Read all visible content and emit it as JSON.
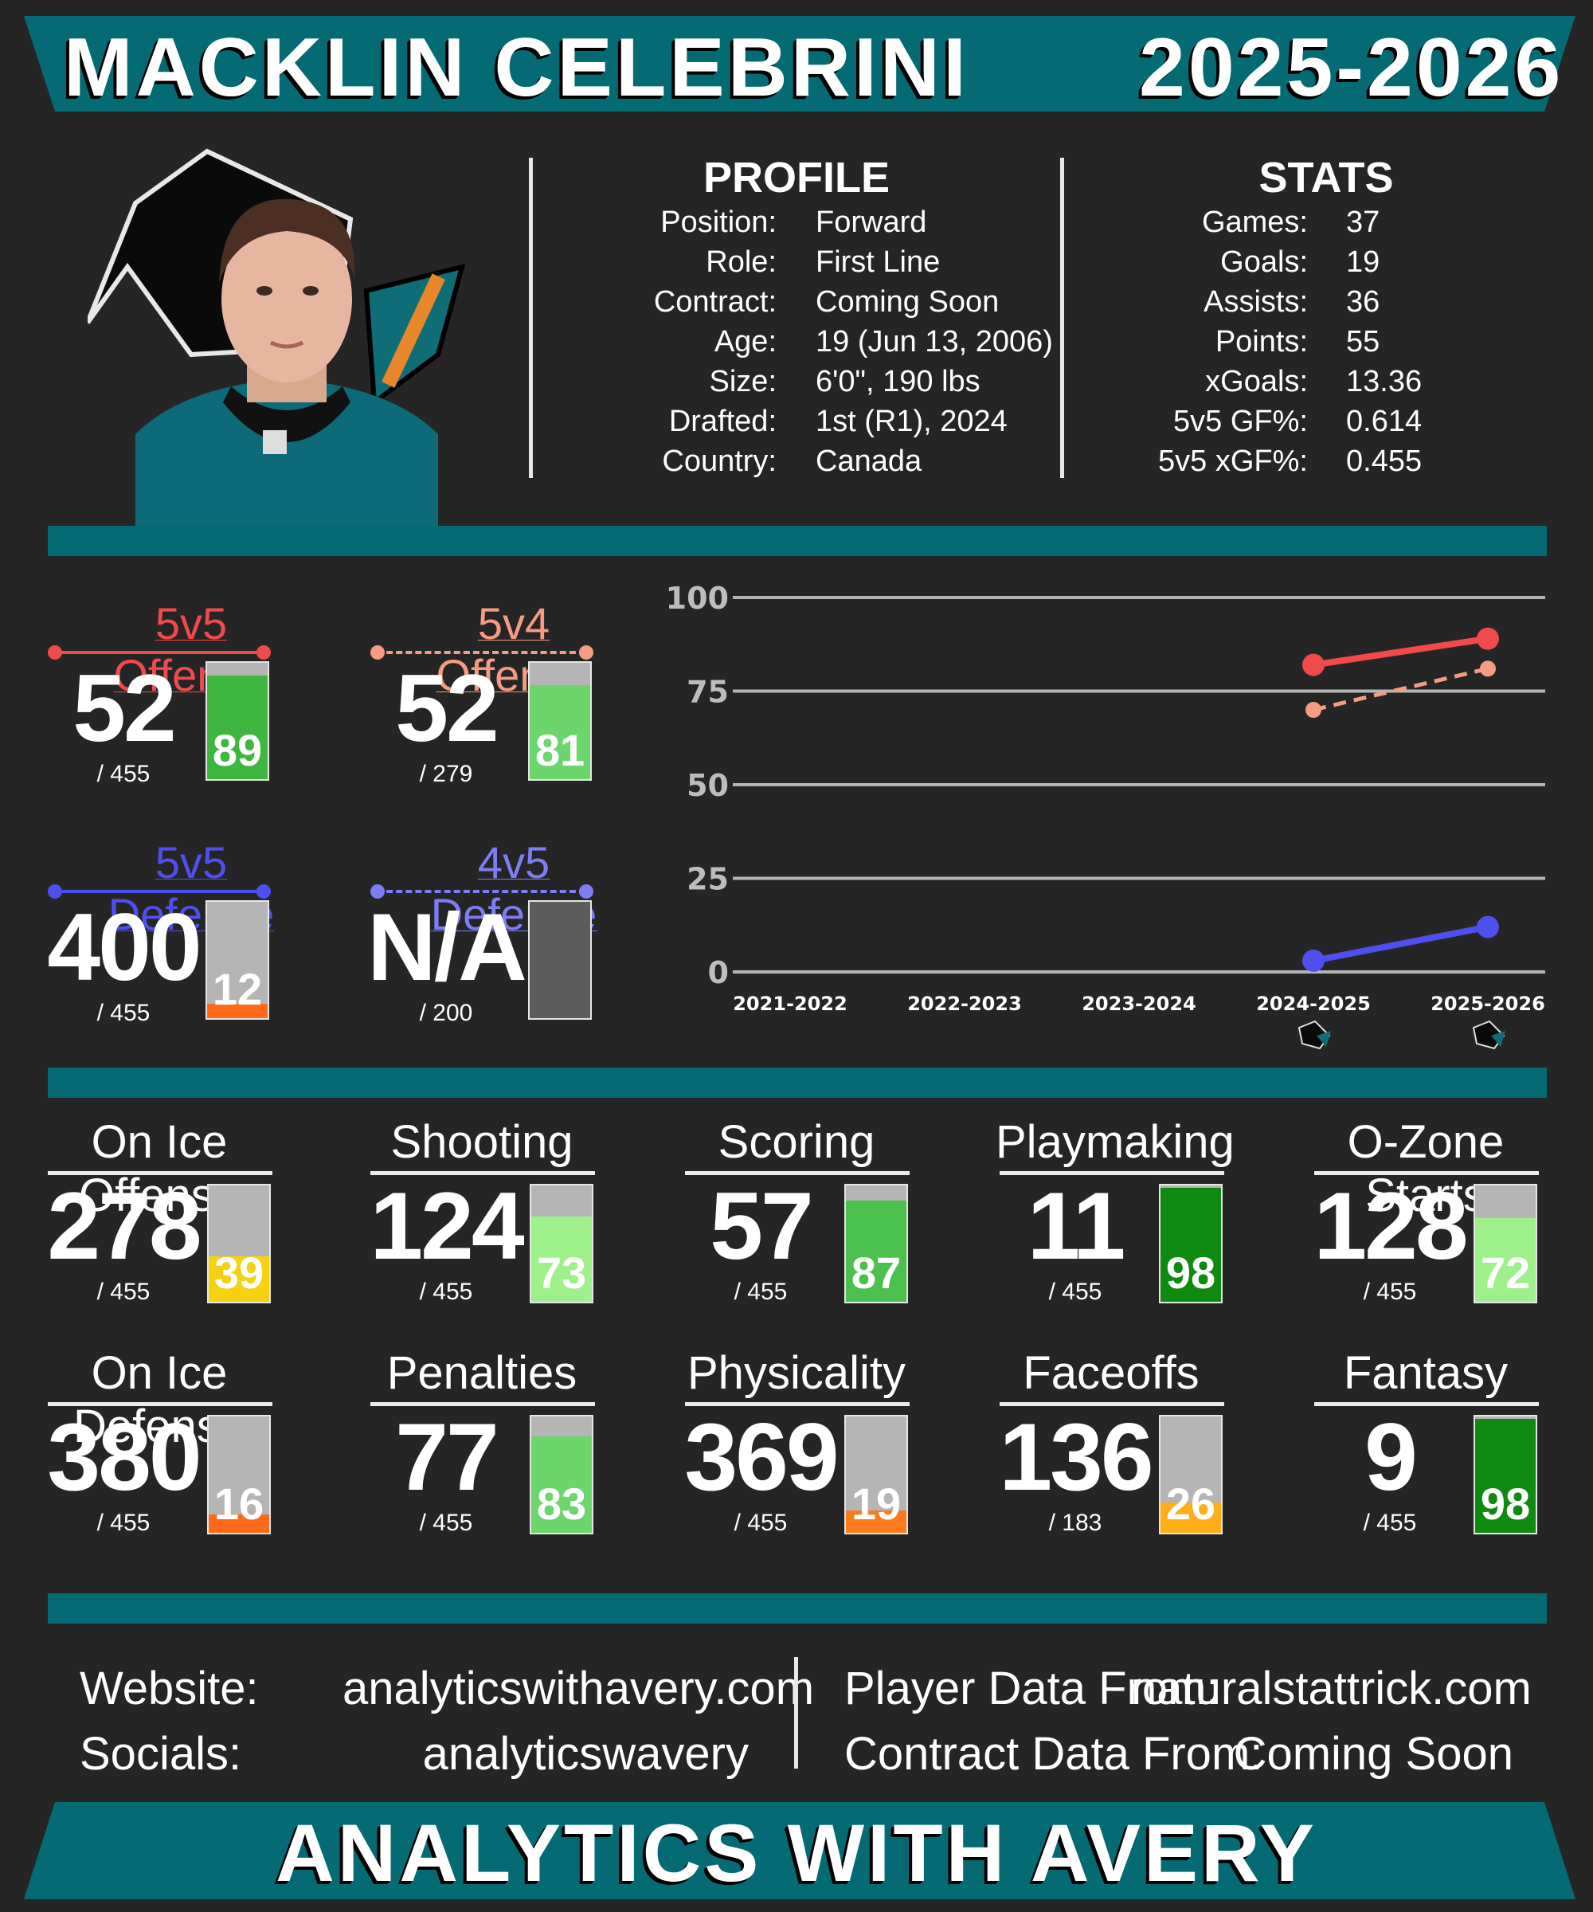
{
  "header": {
    "player_name": "MACKLIN CELEBRINI",
    "season": "2025-2026"
  },
  "profile": {
    "heading": "PROFILE",
    "rows": [
      {
        "label": "Position:",
        "value": "Forward"
      },
      {
        "label": "Role:",
        "value": "First Line"
      },
      {
        "label": "Contract:",
        "value": "Coming Soon"
      },
      {
        "label": "Age:",
        "value": "19 (Jun 13, 2006)"
      },
      {
        "label": "Size:",
        "value": "6'0\", 190 lbs"
      },
      {
        "label": "Drafted:",
        "value": "1st (R1), 2024"
      },
      {
        "label": "Country:",
        "value": "Canada"
      }
    ]
  },
  "stats": {
    "heading": "STATS",
    "rows": [
      {
        "label": "Games:",
        "value": "37"
      },
      {
        "label": "Goals:",
        "value": "19"
      },
      {
        "label": "Assists:",
        "value": "36"
      },
      {
        "label": "Points:",
        "value": "55"
      },
      {
        "label": "xGoals:",
        "value": "13.36"
      },
      {
        "label": "5v5 GF%:",
        "value": "0.614"
      },
      {
        "label": "5v5 xGF%:",
        "value": "0.455"
      }
    ]
  },
  "team_metrics": [
    {
      "label": "5v5 Offense",
      "rank": "52",
      "out_of": "/ 455",
      "percentile": "89",
      "percentile_value": 89,
      "color": "#f04a4a",
      "fill": "#3fb63f",
      "dashed": false
    },
    {
      "label": "5v4 Offense",
      "rank": "52",
      "out_of": "/ 279",
      "percentile": "81",
      "percentile_value": 81,
      "color": "#f59c82",
      "fill": "#6cd66c",
      "dashed": true
    },
    {
      "label": "5v5 Defense",
      "rank": "400",
      "out_of": "/ 455",
      "percentile": "12",
      "percentile_value": 12,
      "color": "#4f4ff0",
      "fill": "#ff6a1a",
      "dashed": false
    },
    {
      "label": "4v5 Defense",
      "rank": "N/A",
      "out_of": "/ 200",
      "percentile": "",
      "percentile_value": 0,
      "color": "#7d7df5",
      "fill": "#5c5c5c",
      "dashed": true
    }
  ],
  "chart_data": {
    "type": "line",
    "categories": [
      "2021-2022",
      "2022-2023",
      "2023-2024",
      "2024-2025",
      "2025-2026"
    ],
    "ylim": [
      0,
      100
    ],
    "yticks": [
      "100",
      "75",
      "50",
      "25",
      "0"
    ],
    "grid": true,
    "team_logo_seasons": [
      "2024-2025",
      "2025-2026"
    ],
    "series": [
      {
        "values": [
          null,
          null,
          null,
          82,
          89
        ],
        "color": "#f04a4a",
        "dashed": false
      },
      {
        "values": [
          null,
          null,
          null,
          70,
          81
        ],
        "color": "#f59c82",
        "dashed": true
      },
      {
        "values": [
          null,
          null,
          null,
          3,
          12
        ],
        "color": "#4f4ff0",
        "dashed": false
      }
    ]
  },
  "categories_row1": [
    {
      "label": "On Ice Offense",
      "rank": "278",
      "out_of": "/ 455",
      "percentile": "39",
      "percentile_value": 39,
      "fill": "#f5d10f"
    },
    {
      "label": "Shooting",
      "rank": "124",
      "out_of": "/ 455",
      "percentile": "73",
      "percentile_value": 73,
      "fill": "#9ef08a"
    },
    {
      "label": "Scoring",
      "rank": "57",
      "out_of": "/ 455",
      "percentile": "87",
      "percentile_value": 87,
      "fill": "#4cc04c"
    },
    {
      "label": "Playmaking",
      "rank": "11",
      "out_of": "/ 455",
      "percentile": "98",
      "percentile_value": 98,
      "fill": "#0e8a10"
    },
    {
      "label": "O-Zone Starts",
      "rank": "128",
      "out_of": "/ 455",
      "percentile": "72",
      "percentile_value": 72,
      "fill": "#9ef08a"
    }
  ],
  "categories_row2": [
    {
      "label": "On Ice Defense",
      "rank": "380",
      "out_of": "/ 455",
      "percentile": "16",
      "percentile_value": 16,
      "fill": "#ff6a1a"
    },
    {
      "label": "Penalties",
      "rank": "77",
      "out_of": "/ 455",
      "percentile": "83",
      "percentile_value": 83,
      "fill": "#6cd66c"
    },
    {
      "label": "Physicality",
      "rank": "369",
      "out_of": "/ 455",
      "percentile": "19",
      "percentile_value": 19,
      "fill": "#ff7a1a"
    },
    {
      "label": "Faceoffs",
      "rank": "136",
      "out_of": "/ 183",
      "percentile": "26",
      "percentile_value": 26,
      "fill": "#ffae18"
    },
    {
      "label": "Fantasy",
      "rank": "9",
      "out_of": "/ 455",
      "percentile": "98",
      "percentile_value": 98,
      "fill": "#0e8a10"
    }
  ],
  "footer": {
    "website_label": "Website:",
    "website": "analyticswithavery.com",
    "socials_label": "Socials:",
    "socials": "analyticswavery",
    "player_data_label": "Player Data From:",
    "player_data": "naturalstattrick.com",
    "contract_data_label": "Contract Data From:",
    "contract_data": "Coming Soon",
    "brand": "ANALYTICS WITH AVERY"
  },
  "colors": {
    "teal": "#046a73",
    "background": "#252525"
  }
}
